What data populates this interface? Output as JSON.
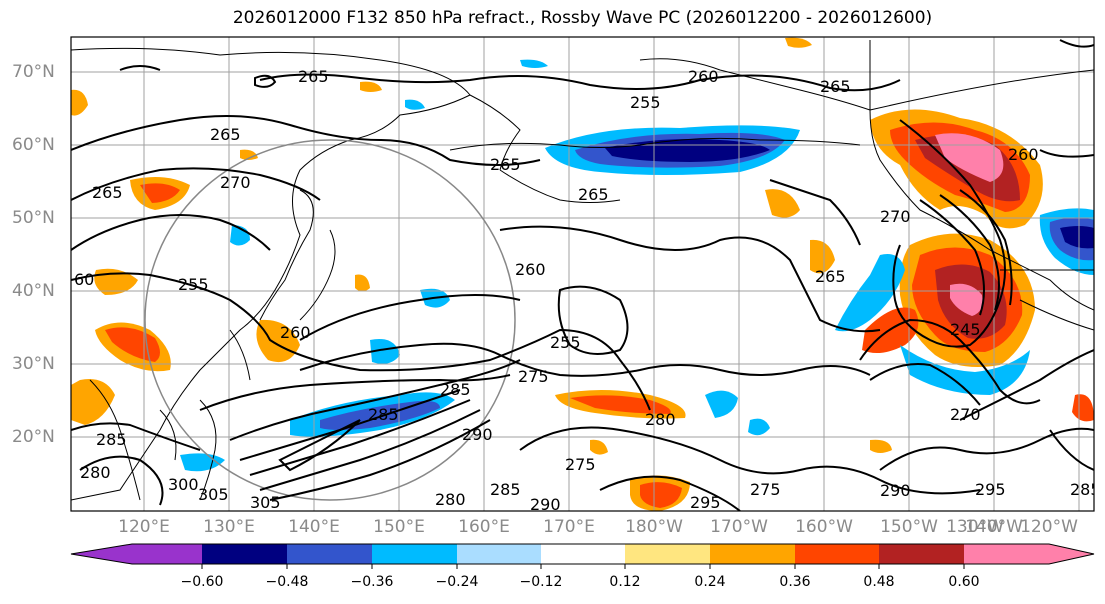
{
  "title": "2026012000 F132 850 hPa refract., Rossby Wave PC (2026012200 - 2026012600)",
  "lat_labels": [
    "70°N",
    "60°N",
    "50°N",
    "40°N",
    "30°N",
    "20°N"
  ],
  "lon_labels": [
    "120°E",
    "130°E",
    "140°E",
    "150°E",
    "160°E",
    "170°E",
    "180°W",
    "170°W",
    "160°W",
    "150°W",
    "140°W",
    "130°W",
    "120°W"
  ],
  "colorbar": {
    "ticks": [
      "−0.60",
      "−0.48",
      "−0.36",
      "−0.24",
      "−0.12",
      "0.12",
      "0.24",
      "0.36",
      "0.48",
      "0.60"
    ],
    "colors": [
      "#9933cc",
      "#000080",
      "#3355cc",
      "#00bbff",
      "#aaddff",
      "#ffffff",
      "#ffe680",
      "#ffa500",
      "#ff4500",
      "#b22222",
      "#ff80aa"
    ]
  },
  "contour_labels": [
    "265",
    "265",
    "260",
    "265",
    "255",
    "270",
    "265",
    "265",
    "260",
    "255",
    "265",
    "260",
    "265",
    "270",
    "260",
    "255",
    "275",
    "285",
    "280",
    "300",
    "305",
    "305",
    "280",
    "285",
    "290",
    "295",
    "290",
    "295",
    "285",
    "280",
    "275",
    "270",
    "245",
    "275",
    "290",
    "60",
    "285",
    "285"
  ]
}
